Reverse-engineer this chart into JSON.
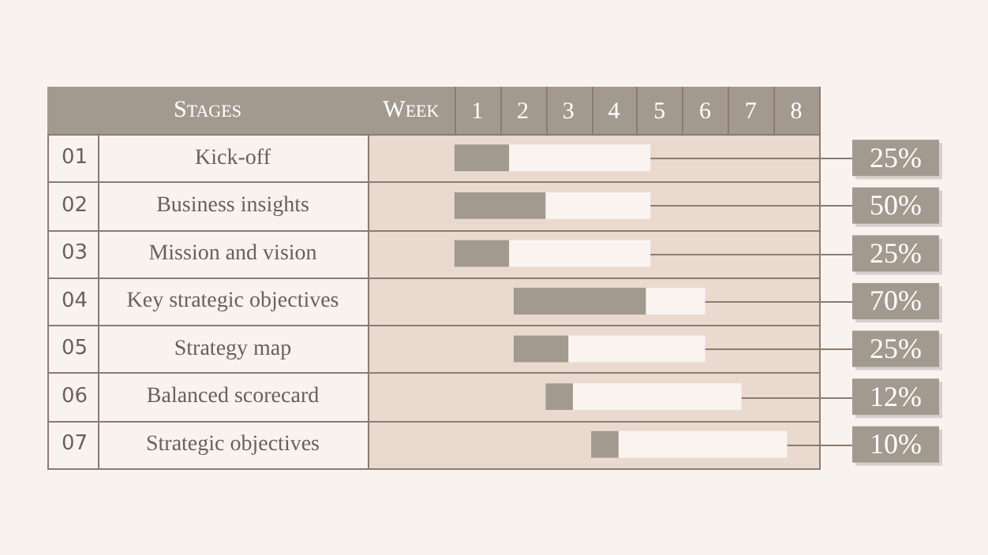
{
  "chart_data": {
    "type": "bar",
    "orientation": "horizontal",
    "xlabel": "Week",
    "ylabel": "Stages",
    "categories": [
      "Kick-off",
      "Business insights",
      "Mission and vision",
      "Key strategic objectives",
      "Strategy map",
      "Balanced scorecard",
      "Strategic objectives"
    ],
    "series": [
      {
        "color": "#f9f4f0",
        "base": [
          0,
          0,
          0,
          1.3,
          1.3,
          2.0,
          3.0
        ],
        "values": [
          4.3,
          4.3,
          4.3,
          4.2,
          4.2,
          4.3,
          4.3
        ]
      },
      {
        "color": "#a39a8f",
        "base": [
          0,
          0,
          0,
          1.3,
          1.3,
          2.0,
          3.0
        ],
        "values": [
          1.2,
          2.0,
          1.2,
          2.9,
          1.2,
          0.6,
          0.6
        ]
      }
    ],
    "xlim": [
      -1.9,
      8
    ],
    "grid": true,
    "xticks": [
      {
        "value": 0.5,
        "label": "1"
      },
      {
        "value": 1.5,
        "label": "2"
      },
      {
        "value": 2.5,
        "label": "3"
      },
      {
        "value": 3.5,
        "label": "4"
      },
      {
        "value": 4.5,
        "label": "5"
      },
      {
        "value": 5.5,
        "label": "6"
      },
      {
        "value": 6.5,
        "label": "7"
      },
      {
        "value": 7.5,
        "label": "8"
      }
    ],
    "annotations": [
      "01",
      "02",
      "03",
      "04",
      "05",
      "06",
      "07",
      {
        "text": "25%",
        "x": 4.3,
        "y": "Kick-off"
      },
      {
        "text": "50%",
        "x": 4.3,
        "y": "Business insights"
      },
      {
        "text": "25%",
        "x": 4.3,
        "y": "Mission and vision"
      },
      {
        "text": "70%",
        "x": 5.5,
        "y": "Key strategic objectives"
      },
      {
        "text": "25%",
        "x": 5.5,
        "y": "Strategy map"
      },
      {
        "text": "12%",
        "x": 6.3,
        "y": "Balanced scorecard"
      },
      {
        "text": "10%",
        "x": 7.3,
        "y": "Strategic objectives"
      }
    ]
  }
}
